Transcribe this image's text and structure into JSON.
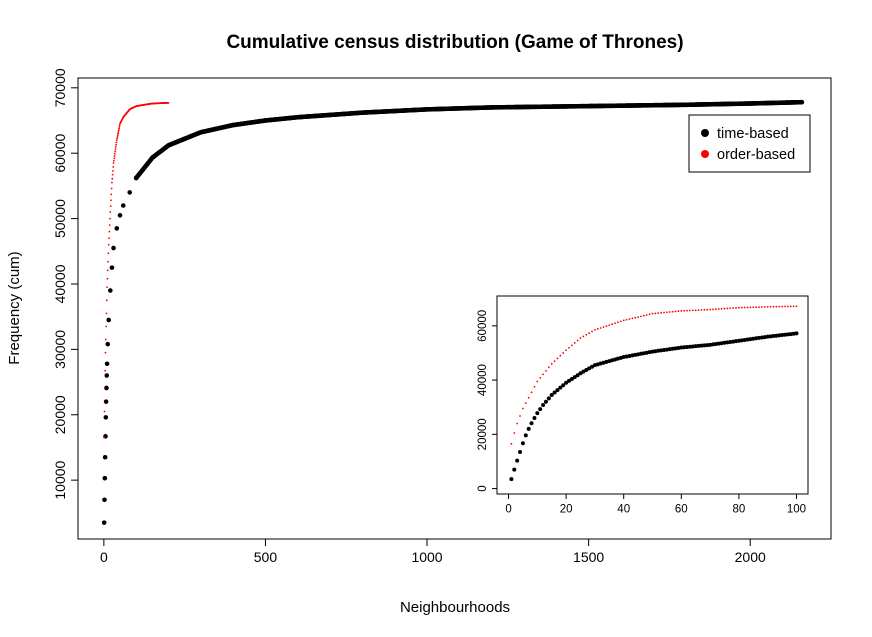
{
  "chart_data": [
    {
      "type": "scatter",
      "title": "Cumulative census distribution (Game of Thrones)",
      "xlabel": "Neighbourhoods",
      "ylabel": "Frequency (cum)",
      "xlim": [
        -80,
        2250
      ],
      "ylim": [
        1000,
        71500
      ],
      "xticks": [
        0,
        500,
        1000,
        1500,
        2000
      ],
      "yticks": [
        10000,
        20000,
        30000,
        40000,
        50000,
        60000,
        70000
      ],
      "legend": {
        "position": "top-right",
        "entries": [
          "time-based",
          "order-based"
        ]
      },
      "series": [
        {
          "name": "time-based",
          "color": "#000000",
          "marker": "filled-circle",
          "x_range": [
            1,
            2160
          ],
          "start_points": [
            [
              1,
              3500
            ],
            [
              2,
              7000
            ],
            [
              3,
              10300
            ],
            [
              4,
              13500
            ],
            [
              5,
              16700
            ],
            [
              6,
              19600
            ],
            [
              7,
              22000
            ],
            [
              8,
              24100
            ],
            [
              9,
              26000
            ],
            [
              10,
              27800
            ],
            [
              12,
              30800
            ],
            [
              15,
              34500
            ],
            [
              20,
              39000
            ],
            [
              25,
              42500
            ],
            [
              30,
              45500
            ],
            [
              40,
              48500
            ],
            [
              50,
              50500
            ],
            [
              60,
              52000
            ],
            [
              80,
              54000
            ],
            [
              100,
              56200
            ]
          ],
          "points": [
            [
              100,
              56200
            ],
            [
              150,
              59300
            ],
            [
              200,
              61200
            ],
            [
              300,
              63200
            ],
            [
              400,
              64300
            ],
            [
              500,
              65000
            ],
            [
              600,
              65500
            ],
            [
              800,
              66200
            ],
            [
              1000,
              66700
            ],
            [
              1200,
              67000
            ],
            [
              1500,
              67200
            ],
            [
              1800,
              67400
            ],
            [
              2000,
              67600
            ],
            [
              2160,
              67800
            ]
          ]
        },
        {
          "name": "order-based",
          "color": "#ff0000",
          "marker": "small-dot",
          "x_range": [
            1,
            200
          ],
          "points": [
            [
              1,
              16500
            ],
            [
              2,
              20500
            ],
            [
              3,
              24000
            ],
            [
              5,
              29500
            ],
            [
              10,
              39500
            ],
            [
              15,
              46000
            ],
            [
              20,
              51000
            ],
            [
              25,
              55500
            ],
            [
              30,
              58500
            ],
            [
              40,
              62000
            ],
            [
              50,
              64500
            ],
            [
              60,
              65500
            ],
            [
              80,
              66700
            ],
            [
              100,
              67200
            ],
            [
              150,
              67600
            ],
            [
              200,
              67700
            ]
          ]
        }
      ]
    },
    {
      "type": "scatter",
      "title": "",
      "xlabel": "",
      "ylabel": "",
      "placement": "inset-bottom-right",
      "xlim": [
        -4,
        104
      ],
      "ylim": [
        -2000,
        71000
      ],
      "xticks": [
        0,
        20,
        40,
        60,
        80,
        100
      ],
      "yticks": [
        0,
        20000,
        40000,
        60000
      ],
      "series": [
        {
          "name": "time-based",
          "color": "#000000",
          "marker": "filled-circle",
          "x_range": [
            1,
            100
          ],
          "points": [
            [
              1,
              3500
            ],
            [
              2,
              7000
            ],
            [
              3,
              10300
            ],
            [
              4,
              13500
            ],
            [
              5,
              16700
            ],
            [
              6,
              19600
            ],
            [
              7,
              22000
            ],
            [
              8,
              24100
            ],
            [
              9,
              26000
            ],
            [
              10,
              27800
            ],
            [
              12,
              30800
            ],
            [
              15,
              34500
            ],
            [
              20,
              39000
            ],
            [
              25,
              42500
            ],
            [
              30,
              45500
            ],
            [
              40,
              48500
            ],
            [
              50,
              50500
            ],
            [
              60,
              52000
            ],
            [
              70,
              53000
            ],
            [
              80,
              54500
            ],
            [
              90,
              56000
            ],
            [
              100,
              57200
            ]
          ]
        },
        {
          "name": "order-based",
          "color": "#ff0000",
          "marker": "small-dot",
          "x_range": [
            1,
            100
          ],
          "points": [
            [
              1,
              16500
            ],
            [
              2,
              20500
            ],
            [
              3,
              24000
            ],
            [
              5,
              29500
            ],
            [
              10,
              39500
            ],
            [
              15,
              46000
            ],
            [
              20,
              51000
            ],
            [
              25,
              55500
            ],
            [
              30,
              58500
            ],
            [
              40,
              62000
            ],
            [
              50,
              64500
            ],
            [
              60,
              65500
            ],
            [
              70,
              66000
            ],
            [
              80,
              66700
            ],
            [
              90,
              67000
            ],
            [
              100,
              67200
            ]
          ]
        }
      ]
    }
  ]
}
